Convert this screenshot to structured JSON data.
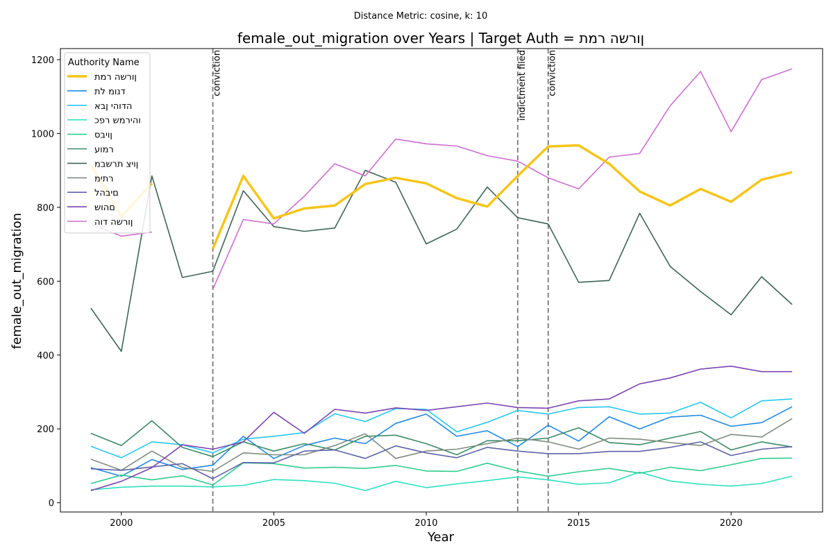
{
  "chart_data": {
    "type": "line",
    "suptitle": "Distance Metric: cosine, k: 10",
    "title": "female_out_migration over Years | Target Auth = ןורשה רמת",
    "xlabel": "Year",
    "ylabel": "female_out_migration",
    "xlim": [
      1998,
      2023
    ],
    "ylim": [
      -25,
      1230
    ],
    "x_ticks": [
      2000,
      2005,
      2010,
      2015,
      2020
    ],
    "y_ticks": [
      0,
      200,
      400,
      600,
      800,
      1000,
      1200
    ],
    "grid": false,
    "legend": {
      "title": "Authority Name",
      "placement": "top-left"
    },
    "events": [
      {
        "year": 2003,
        "label": "conviction"
      },
      {
        "year": 2013,
        "label": "indictment filed"
      },
      {
        "year": 2014,
        "label": "conviction"
      }
    ],
    "x": [
      1999,
      2000,
      2001,
      2002,
      2003,
      2004,
      2005,
      2006,
      2007,
      2008,
      2009,
      2010,
      2011,
      2012,
      2013,
      2014,
      2015,
      2016,
      2017,
      2018,
      2019,
      2020,
      2021,
      2022
    ],
    "series": [
      {
        "name": "ןורשה רמת",
        "color": "#f5c518",
        "width": 3.5,
        "values": [
          915,
          775,
          865,
          null,
          688,
          885,
          770,
          797,
          805,
          863,
          880,
          865,
          825,
          802,
          885,
          965,
          968,
          918,
          843,
          805,
          850,
          815,
          875,
          895
        ]
      },
      {
        "name": "דנומ לת",
        "color": "#1e88e5",
        "width": 1.6,
        "values": [
          95,
          72,
          117,
          90,
          102,
          180,
          120,
          155,
          175,
          160,
          215,
          240,
          180,
          195,
          152,
          210,
          167,
          233,
          200,
          232,
          237,
          207,
          217,
          260
        ]
      },
      {
        "name": "הדוהי ןבא",
        "color": "#26c6f0",
        "width": 1.6,
        "values": [
          153,
          122,
          165,
          157,
          135,
          172,
          180,
          190,
          241,
          220,
          255,
          253,
          192,
          218,
          250,
          240,
          258,
          260,
          240,
          243,
          272,
          230,
          276,
          281
        ]
      },
      {
        "name": "והירמש רפכ",
        "color": "#2de0c0",
        "width": 1.6,
        "values": [
          35,
          42,
          45,
          45,
          43,
          47,
          63,
          60,
          53,
          33,
          58,
          41,
          51,
          60,
          70,
          62,
          50,
          54,
          83,
          59,
          50,
          45,
          52,
          72
        ]
      },
      {
        "name": "ןויבס",
        "color": "#2ecc8f",
        "width": 1.6,
        "values": [
          52,
          75,
          62,
          73,
          48,
          108,
          106,
          94,
          96,
          93,
          101,
          86,
          85,
          107,
          86,
          72,
          84,
          93,
          80,
          96,
          87,
          103,
          120,
          121
        ]
      },
      {
        "name": "רמוע",
        "color": "#3a8a66",
        "width": 1.6,
        "values": [
          188,
          155,
          222,
          150,
          125,
          165,
          140,
          160,
          143,
          180,
          183,
          160,
          130,
          168,
          168,
          175,
          203,
          163,
          157,
          175,
          193,
          143,
          165,
          151
        ]
      },
      {
        "name": "ןויצ תרשבמ",
        "color": "#3d6454",
        "width": 1.6,
        "values": [
          527,
          410,
          885,
          610,
          627,
          845,
          748,
          735,
          744,
          900,
          868,
          701,
          741,
          855,
          772,
          755,
          597,
          602,
          784,
          640,
          572,
          509,
          612,
          537
        ]
      },
      {
        "name": "רתימ",
        "color": "#7f8c80",
        "width": 1.6,
        "values": [
          118,
          88,
          140,
          95,
          85,
          135,
          130,
          130,
          155,
          187,
          120,
          140,
          145,
          160,
          175,
          165,
          145,
          175,
          172,
          163,
          155,
          185,
          178,
          228
        ]
      },
      {
        "name": "םיבהל",
        "color": "#5e62a8",
        "width": 1.6,
        "values": [
          92,
          88,
          97,
          106,
          65,
          109,
          108,
          140,
          143,
          120,
          154,
          135,
          122,
          150,
          140,
          133,
          133,
          139,
          139,
          150,
          165,
          128,
          145,
          152
        ]
      },
      {
        "name": "םהוש",
        "color": "#7b44b0",
        "width": 1.6,
        "values": [
          33,
          58,
          95,
          157,
          145,
          165,
          245,
          188,
          253,
          243,
          257,
          250,
          260,
          270,
          258,
          256,
          276,
          281,
          322,
          338,
          362,
          370,
          355,
          355
        ]
      },
      {
        "name": "ןורשה דוה",
        "color": "#cc6ecf",
        "width": 1.6,
        "values": [
          755,
          722,
          733,
          null,
          578,
          767,
          755,
          830,
          918,
          885,
          985,
          972,
          966,
          940,
          925,
          880,
          850,
          936,
          946,
          1075,
          1168,
          1005,
          1146,
          1175
        ]
      }
    ]
  }
}
